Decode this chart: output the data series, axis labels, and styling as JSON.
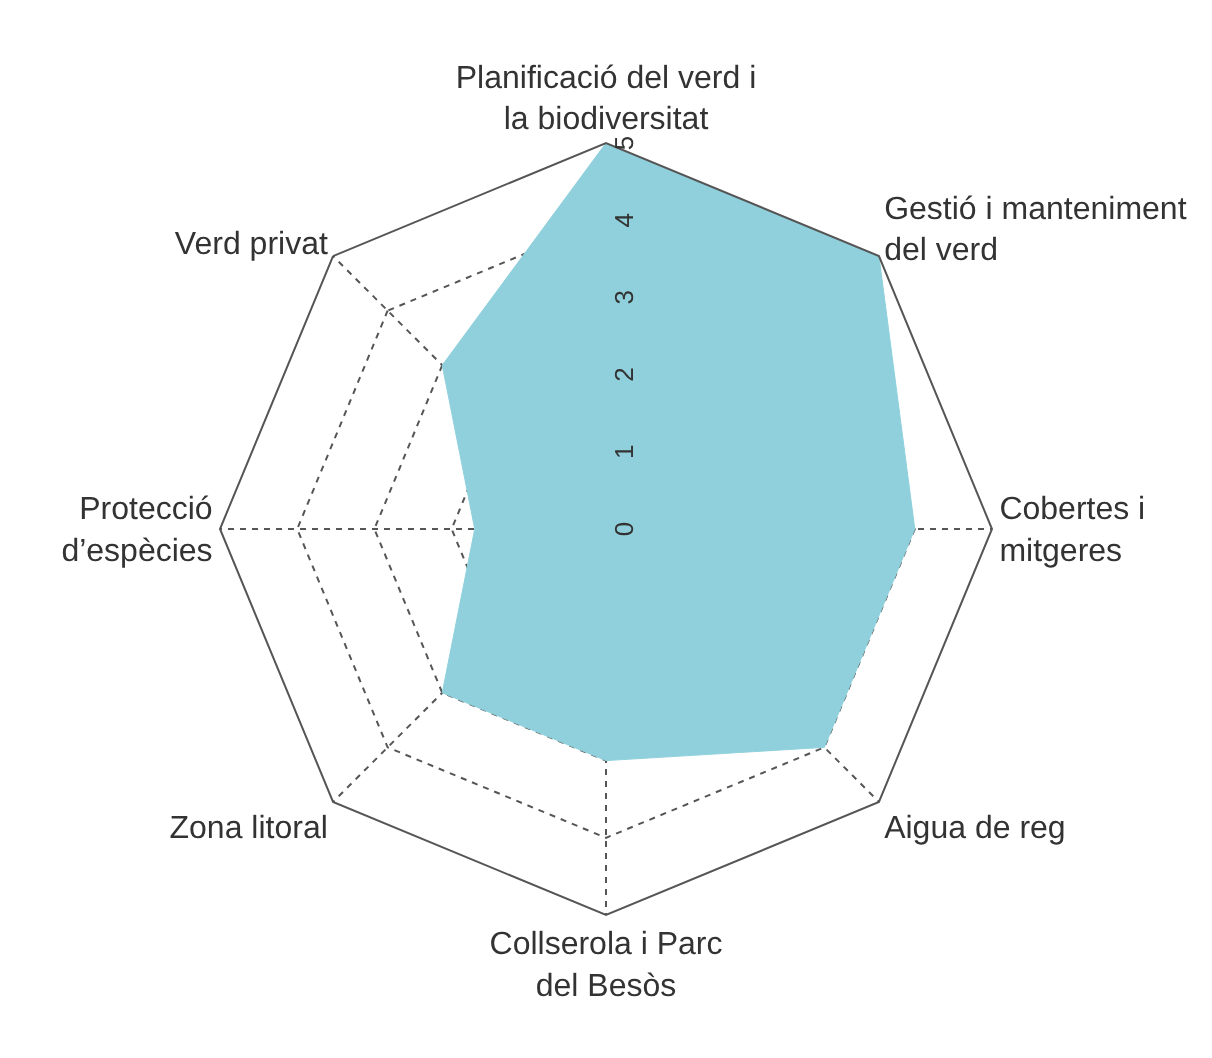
{
  "chart_data": {
    "type": "radar",
    "categories": [
      "Planificació del verd i\nla biodiversitat",
      "Gestió i manteniment\ndel verd",
      "Cobertes i\nmitgeres",
      "Aigua de reg",
      "Collserola i Parc\ndel Besòs",
      "Zona litoral",
      "Protecció\nd’espècies",
      "Verd privat"
    ],
    "series": [
      {
        "color": "#8fd0dc",
        "values": [
          5,
          5,
          4,
          4,
          3,
          3,
          1.7,
          3
        ]
      }
    ],
    "ylim": [
      0,
      5
    ],
    "yticks": [
      0,
      1,
      2,
      3,
      4,
      5
    ],
    "grid": true,
    "marker": "none"
  }
}
